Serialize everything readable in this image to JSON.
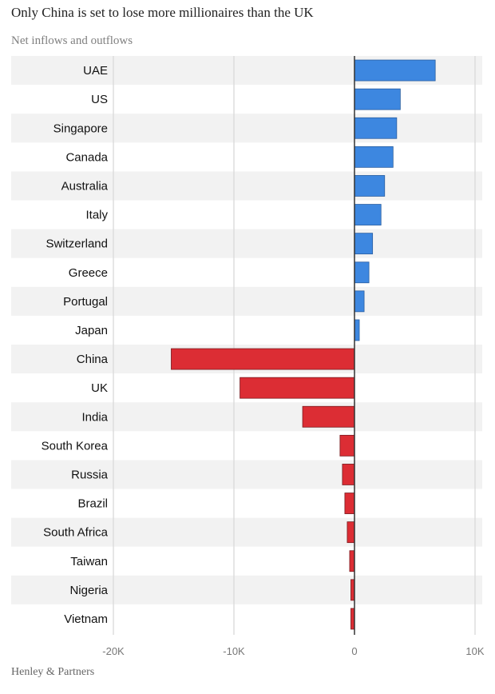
{
  "title": "Only China is set to lose more millionaires than the UK",
  "subtitle": "Net inflows and outflows",
  "source": "Henley & Partners",
  "colors": {
    "positive": "#3d87e0",
    "negative": "#dc2d34",
    "stripe": "#f2f2f2",
    "grid": "#dddddd",
    "zero_line": "#333333"
  },
  "chart_data": {
    "type": "bar",
    "orientation": "horizontal",
    "categories": [
      "UAE",
      "US",
      "Singapore",
      "Canada",
      "Australia",
      "Italy",
      "Switzerland",
      "Greece",
      "Portugal",
      "Japan",
      "China",
      "UK",
      "India",
      "South Korea",
      "Russia",
      "Brazil",
      "South Africa",
      "Taiwan",
      "Nigeria",
      "Vietnam"
    ],
    "values": [
      6700,
      3800,
      3500,
      3200,
      2500,
      2200,
      1500,
      1200,
      800,
      400,
      -15200,
      -9500,
      -4300,
      -1200,
      -1000,
      -800,
      -600,
      -400,
      -300,
      -300
    ],
    "xlim": [
      -20000,
      10000
    ],
    "xticks": [
      -20000,
      -10000,
      0,
      10000
    ],
    "xtick_labels": [
      "-20K",
      "-10K",
      "0",
      "10K"
    ],
    "xlabel": "",
    "ylabel": "",
    "grid": true,
    "legend": "none"
  }
}
